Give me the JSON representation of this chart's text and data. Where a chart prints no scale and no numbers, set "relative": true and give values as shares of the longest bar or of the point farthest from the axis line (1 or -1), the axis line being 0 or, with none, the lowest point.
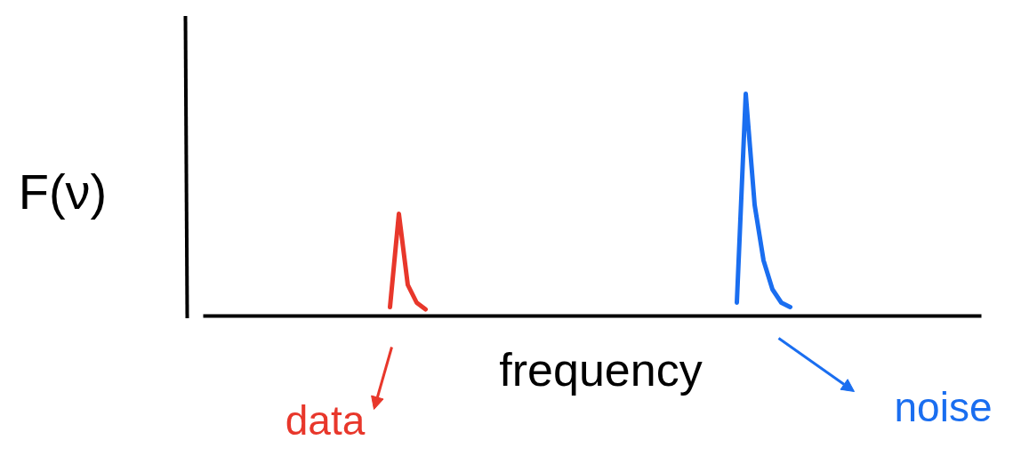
{
  "chart_data": {
    "type": "line",
    "relative": true,
    "tick_labels": false,
    "xlabel": "frequency",
    "ylabel": "F(ν)",
    "categories": [
      null,
      null,
      null,
      null,
      null,
      null,
      null,
      null,
      null,
      null,
      null,
      null,
      null,
      null,
      null,
      null,
      null,
      null,
      null,
      null,
      null,
      null,
      null,
      null,
      null,
      null,
      null,
      null,
      null,
      null,
      null,
      null,
      null,
      null,
      null,
      null,
      null,
      null,
      null,
      null,
      null,
      null,
      null,
      null,
      null,
      null,
      null,
      null,
      null,
      null,
      null,
      null,
      null,
      null,
      null,
      null,
      null,
      null,
      null,
      null,
      null,
      null,
      null,
      null,
      null,
      null,
      null,
      null,
      null,
      null,
      null,
      null,
      null,
      null,
      null,
      null,
      null,
      null,
      null,
      null,
      null,
      null,
      null,
      null,
      null,
      null,
      null,
      null
    ],
    "series": [
      {
        "color": "#e8372b",
        "values": [
          null,
          null,
          null,
          null,
          null,
          null,
          null,
          null,
          null,
          null,
          null,
          null,
          null,
          null,
          null,
          null,
          null,
          null,
          null,
          null,
          null,
          0.04,
          0.46,
          0.14,
          0.06,
          0.03,
          null,
          null,
          null,
          null,
          null,
          null,
          null,
          null,
          null,
          null,
          null,
          null,
          null,
          null,
          null,
          null,
          null,
          null,
          null,
          null,
          null,
          null,
          null,
          null,
          null,
          null,
          null,
          null,
          null,
          null,
          null,
          null,
          null,
          null,
          null,
          null,
          null,
          null,
          null,
          null,
          null,
          null,
          null,
          null,
          null,
          null,
          null,
          null,
          null,
          null,
          null,
          null,
          null,
          null,
          null,
          null,
          null,
          null,
          null,
          null,
          null,
          null
        ]
      },
      {
        "color": "#1a6ef0",
        "values": [
          null,
          null,
          null,
          null,
          null,
          null,
          null,
          null,
          null,
          null,
          null,
          null,
          null,
          null,
          null,
          null,
          null,
          null,
          null,
          null,
          null,
          null,
          null,
          null,
          null,
          null,
          null,
          null,
          null,
          null,
          null,
          null,
          null,
          null,
          null,
          null,
          null,
          null,
          null,
          null,
          null,
          null,
          null,
          null,
          null,
          null,
          null,
          null,
          null,
          null,
          null,
          null,
          null,
          null,
          null,
          null,
          null,
          null,
          null,
          null,
          0.06,
          1,
          0.5,
          0.25,
          0.12,
          0.06,
          0.04,
          null,
          null,
          null,
          null,
          null,
          null,
          null,
          null,
          null,
          null,
          null,
          null,
          null,
          null,
          null,
          null,
          null,
          null,
          null,
          null,
          null
        ]
      }
    ],
    "annotations": [
      "data",
      "noise"
    ]
  }
}
